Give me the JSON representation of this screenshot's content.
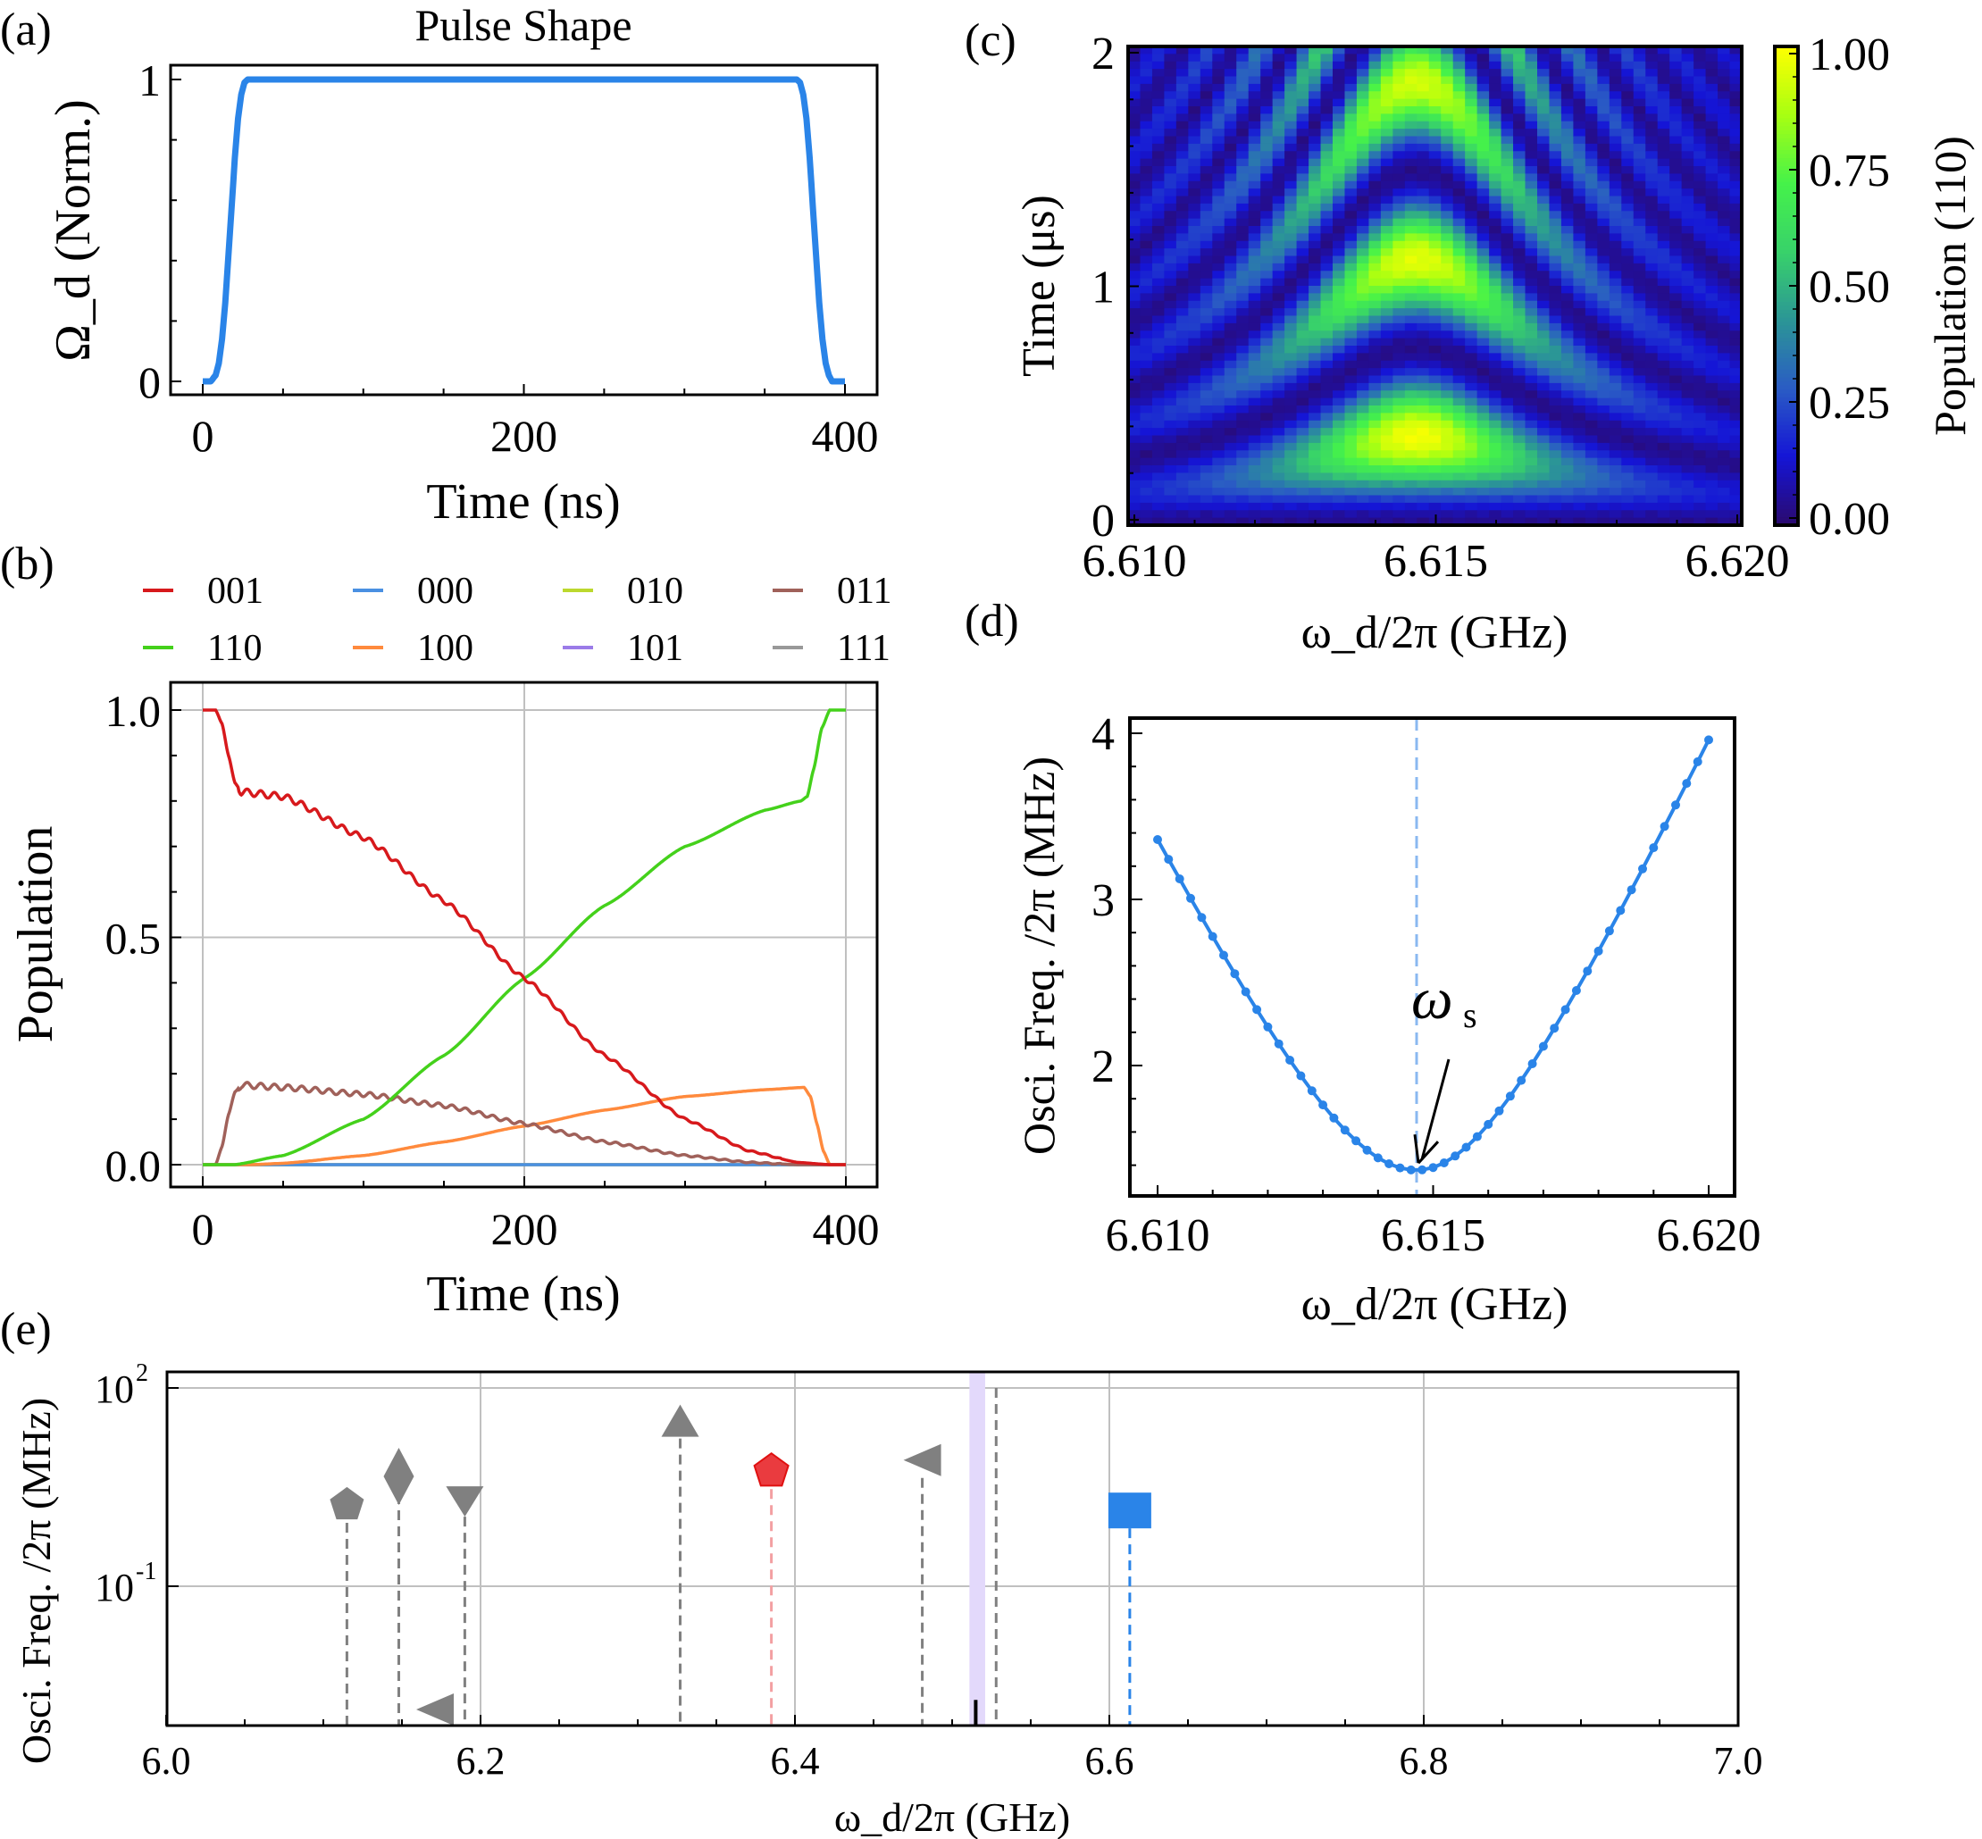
{
  "figure": {
    "panel_labels": [
      "(a)",
      "(b)",
      "(c)",
      "(d)",
      "(e)"
    ]
  },
  "chart_data": [
    {
      "id": "a",
      "type": "line",
      "title": "Pulse Shape",
      "xlabel": "Time (ns)",
      "ylabel": "Ω_d (Norm.)",
      "xlim": [
        -20,
        420
      ],
      "ylim": [
        -0.05,
        1.08
      ],
      "xticks": [
        0,
        200,
        400
      ],
      "xtick_labels": [
        "0",
        "200",
        "400"
      ],
      "yticks": [
        0,
        1
      ],
      "ytick_labels": [
        "0",
        "1"
      ],
      "grid": false,
      "series": [
        {
          "name": "pulse",
          "color": "#2a84e8",
          "x": [
            0,
            5,
            8,
            10,
            12,
            14,
            16,
            18,
            20,
            22,
            24,
            26,
            28,
            30,
            200,
            370,
            372,
            374,
            376,
            378,
            380,
            382,
            384,
            386,
            388,
            390,
            392,
            395,
            400
          ],
          "y": [
            0,
            0,
            0.02,
            0.06,
            0.14,
            0.26,
            0.42,
            0.58,
            0.74,
            0.87,
            0.95,
            0.99,
            1.0,
            1.0,
            1.0,
            1.0,
            0.99,
            0.95,
            0.87,
            0.74,
            0.58,
            0.42,
            0.26,
            0.14,
            0.06,
            0.02,
            0,
            0,
            0
          ]
        }
      ]
    },
    {
      "id": "b",
      "type": "line",
      "xlabel": "Time (ns)",
      "ylabel": "Population",
      "xlim": [
        -20,
        420
      ],
      "ylim": [
        -0.04,
        1.06
      ],
      "xticks": [
        0,
        200,
        400
      ],
      "xtick_labels": [
        "0",
        "200",
        "400"
      ],
      "yticks": [
        0,
        0.5,
        1.0
      ],
      "ytick_labels": [
        "0.0",
        "0.5",
        "1.0"
      ],
      "grid": true,
      "legend": {
        "placement": "top",
        "columns": 4,
        "entries": [
          {
            "label": "001",
            "color": "#d7191c"
          },
          {
            "label": "000",
            "color": "#4a90e2"
          },
          {
            "label": "010",
            "color": "#bcd82e"
          },
          {
            "label": "011",
            "color": "#a0615a"
          },
          {
            "label": "110",
            "color": "#44d11b"
          },
          {
            "label": "100",
            "color": "#ff8a3d"
          },
          {
            "label": "101",
            "color": "#9b7be8"
          },
          {
            "label": "111",
            "color": "#999999"
          }
        ]
      },
      "series": [
        {
          "name": "001",
          "color": "#d7191c",
          "x": [
            0,
            8,
            12,
            16,
            20,
            24,
            50,
            100,
            150,
            200,
            250,
            300,
            340,
            370,
            390,
            400
          ],
          "y": [
            1.0,
            1.0,
            0.97,
            0.9,
            0.84,
            0.82,
            0.81,
            0.72,
            0.58,
            0.41,
            0.24,
            0.1,
            0.03,
            0.005,
            0,
            0
          ],
          "ripple": 0.008
        },
        {
          "name": "110",
          "color": "#44d11b",
          "x": [
            0,
            20,
            50,
            100,
            150,
            200,
            250,
            300,
            350,
            372,
            376,
            380,
            385,
            390,
            400
          ],
          "y": [
            0,
            0,
            0.02,
            0.1,
            0.24,
            0.41,
            0.57,
            0.7,
            0.78,
            0.8,
            0.81,
            0.87,
            0.96,
            1.0,
            1.0
          ],
          "ripple": 0
        },
        {
          "name": "011",
          "color": "#a0615a",
          "x": [
            0,
            8,
            12,
            16,
            20,
            24,
            50,
            100,
            150,
            200,
            250,
            300,
            340,
            370,
            400
          ],
          "y": [
            0,
            0,
            0.04,
            0.11,
            0.16,
            0.175,
            0.17,
            0.155,
            0.13,
            0.09,
            0.05,
            0.02,
            0.005,
            0,
            0
          ],
          "ripple": 0.007
        },
        {
          "name": "100",
          "color": "#ff8a3d",
          "x": [
            0,
            30,
            50,
            100,
            150,
            200,
            250,
            300,
            350,
            374,
            378,
            382,
            386,
            390,
            400
          ],
          "y": [
            0,
            0,
            0.003,
            0.02,
            0.05,
            0.085,
            0.12,
            0.15,
            0.165,
            0.17,
            0.15,
            0.09,
            0.03,
            0,
            0
          ],
          "ripple": 0
        },
        {
          "name": "000",
          "color": "#4a90e2",
          "x": [
            0,
            400
          ],
          "y": [
            0,
            0
          ],
          "ripple": 0
        },
        {
          "name": "010",
          "color": "#bcd82e",
          "x": [
            0,
            400
          ],
          "y": [
            0,
            0
          ],
          "ripple": 0
        },
        {
          "name": "101",
          "color": "#9b7be8",
          "x": [
            0,
            400
          ],
          "y": [
            0,
            0
          ],
          "ripple": 0
        },
        {
          "name": "111",
          "color": "#999999",
          "x": [
            0,
            400
          ],
          "y": [
            0,
            0
          ],
          "ripple": 0
        }
      ]
    },
    {
      "id": "c",
      "type": "heatmap",
      "xlabel": "ω_d/2π (GHz)",
      "ylabel": "Time (μs)",
      "xlim": [
        6.61,
        6.62
      ],
      "ylim": [
        0,
        2
      ],
      "xticks": [
        6.61,
        6.615,
        6.62
      ],
      "xtick_labels": [
        "6.610",
        "6.615",
        "6.620"
      ],
      "yticks": [
        0,
        1,
        2
      ],
      "ytick_labels": [
        "0",
        "1",
        "2"
      ],
      "colorbar": {
        "label": "Population (110)",
        "range": [
          0,
          1
        ],
        "ticks": [
          0,
          0.25,
          0.5,
          0.75,
          1.0
        ],
        "tick_labels": [
          "0.00",
          "0.25",
          "0.50",
          "0.75",
          "1.00"
        ],
        "colormap_stops": [
          "#2b0a6e",
          "#1515d6",
          "#2a5cc4",
          "#2b9696",
          "#38d26a",
          "#45f24a",
          "#a8ff12",
          "#ffff00"
        ]
      },
      "model": {
        "description": "Chevron of population(110) vs drive frequency and time",
        "center_frequency_GHz": 6.6147,
        "min_oscillation_MHz": 1.37,
        "n_columns": 51,
        "n_rows": 64,
        "peak_times_us": [
          0.37,
          1.08,
          1.8
        ]
      }
    },
    {
      "id": "d",
      "type": "line",
      "xlabel": "ω_d/2π (GHz)",
      "ylabel": "Osci. Freq. /2π (MHz)",
      "xlim": [
        6.6095,
        6.6205
      ],
      "xticks": [
        6.61,
        6.615,
        6.62
      ],
      "xtick_labels": [
        "6.610",
        "6.615",
        "6.620"
      ],
      "yticks": [
        2,
        3,
        4
      ],
      "ytick_labels": [
        "2",
        "3",
        "4"
      ],
      "ylim": [
        1.24,
        4.09
      ],
      "grid": false,
      "series": [
        {
          "name": "osc_freq",
          "color": "#2a84e8",
          "marker": "circle",
          "x_start": 6.61,
          "x_end": 6.62,
          "n_points": 51,
          "center": 6.6147,
          "min_value": 1.37,
          "left_value": 3.36,
          "right_value": 3.96
        }
      ],
      "vline": {
        "x": 6.6147,
        "color": "#8ab8f0",
        "style": "dashed"
      },
      "annotation": {
        "text": "ω",
        "subscript": "s",
        "arrow_to": [
          6.6147,
          1.37
        ]
      }
    },
    {
      "id": "e",
      "type": "scatter",
      "xlabel": "ω_d/2π (GHz)",
      "ylabel": "Osci. Freq. /2π (MHz)",
      "xlim": [
        6.0,
        7.0
      ],
      "yscale": "log",
      "ylog_range": [
        -3.11,
        2.24
      ],
      "xticks": [
        6.0,
        6.2,
        6.4,
        6.6,
        6.8,
        7.0
      ],
      "xtick_labels": [
        "6.0",
        "6.2",
        "6.4",
        "6.6",
        "6.8",
        "7.0"
      ],
      "yticks_log": [
        -1,
        2
      ],
      "ytick_labels": [
        "10",
        "10"
      ],
      "ytick_exponents": [
        "-1",
        "2"
      ],
      "grid": true,
      "points": [
        {
          "x": 6.115,
          "y": 1.7,
          "marker": "pentagon",
          "color": "#808080"
        },
        {
          "x": 6.148,
          "y": 4.6,
          "marker": "diamond",
          "color": "#808080"
        },
        {
          "x": 6.19,
          "y": 2.1,
          "marker": "triangle-down",
          "color": "#808080"
        },
        {
          "x": 6.175,
          "y": 0.0012,
          "marker": "triangle-left",
          "color": "#808080",
          "no_stem": true
        },
        {
          "x": 6.327,
          "y": 32,
          "marker": "triangle-up",
          "color": "#808080"
        },
        {
          "x": 6.385,
          "y": 5.5,
          "marker": "pentagon",
          "color": "#e8262a"
        },
        {
          "x": 6.481,
          "y": 8.1,
          "marker": "triangle-left",
          "color": "#808080"
        },
        {
          "x": 6.613,
          "y": 1.4,
          "marker": "square",
          "color": "#2a84e8"
        }
      ],
      "extra_lines": [
        {
          "x": 6.528,
          "color": "#808080",
          "style": "dashed",
          "to_top": true
        }
      ],
      "band": {
        "x0": 6.511,
        "x1": 6.521,
        "color": "#e3d9fb"
      },
      "black_bar": {
        "x": 6.515,
        "log_top": -2.72
      }
    }
  ]
}
